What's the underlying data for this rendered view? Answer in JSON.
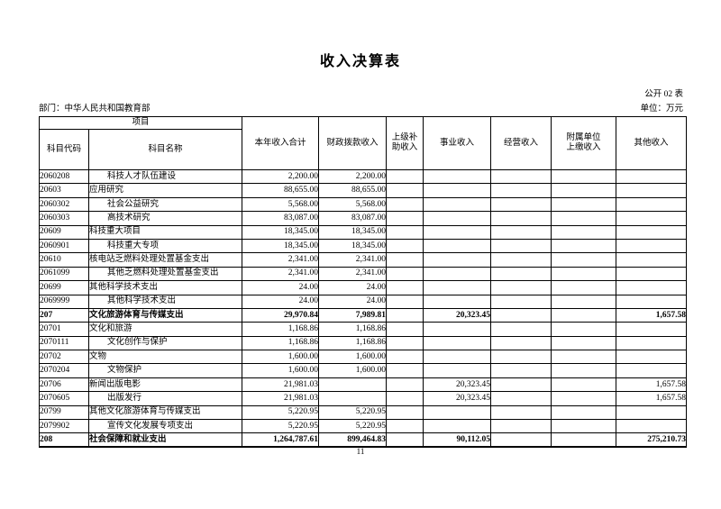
{
  "page": {
    "title": "收入决算表",
    "sheet_label": "公开 02 表",
    "department_label": "部门：中华人民共和国教育部",
    "unit_label": "单位：万元",
    "page_number": "11"
  },
  "table": {
    "header": {
      "project": "项目",
      "code": "科目代码",
      "name": "科目名称",
      "cols": [
        "本年收入合计",
        "财政拨款收入",
        "上级补\n助收入",
        "事业收入",
        "经营收入",
        "附属单位\n上缴收入",
        "其他收入"
      ]
    },
    "rows": [
      {
        "code": "2060208",
        "name": "科技人才队伍建设",
        "indent": 1,
        "bold": false,
        "values": [
          "2,200.00",
          "2,200.00",
          "",
          "",
          "",
          "",
          ""
        ]
      },
      {
        "code": "20603",
        "name": "应用研究",
        "indent": 0,
        "bold": false,
        "values": [
          "88,655.00",
          "88,655.00",
          "",
          "",
          "",
          "",
          ""
        ]
      },
      {
        "code": "2060302",
        "name": "社会公益研究",
        "indent": 1,
        "bold": false,
        "values": [
          "5,568.00",
          "5,568.00",
          "",
          "",
          "",
          "",
          ""
        ]
      },
      {
        "code": "2060303",
        "name": "高技术研究",
        "indent": 1,
        "bold": false,
        "values": [
          "83,087.00",
          "83,087.00",
          "",
          "",
          "",
          "",
          ""
        ]
      },
      {
        "code": "20609",
        "name": "科技重大项目",
        "indent": 0,
        "bold": false,
        "values": [
          "18,345.00",
          "18,345.00",
          "",
          "",
          "",
          "",
          ""
        ]
      },
      {
        "code": "2060901",
        "name": "科技重大专项",
        "indent": 1,
        "bold": false,
        "values": [
          "18,345.00",
          "18,345.00",
          "",
          "",
          "",
          "",
          ""
        ]
      },
      {
        "code": "20610",
        "name": "核电站乏燃料处理处置基金支出",
        "indent": 0,
        "bold": false,
        "values": [
          "2,341.00",
          "2,341.00",
          "",
          "",
          "",
          "",
          ""
        ]
      },
      {
        "code": "2061099",
        "name": "其他乏燃料处理处置基金支出",
        "indent": 1,
        "bold": false,
        "values": [
          "2,341.00",
          "2,341.00",
          "",
          "",
          "",
          "",
          ""
        ]
      },
      {
        "code": "20699",
        "name": "其他科学技术支出",
        "indent": 0,
        "bold": false,
        "values": [
          "24.00",
          "24.00",
          "",
          "",
          "",
          "",
          ""
        ]
      },
      {
        "code": "2069999",
        "name": "其他科学技术支出",
        "indent": 1,
        "bold": false,
        "values": [
          "24.00",
          "24.00",
          "",
          "",
          "",
          "",
          ""
        ]
      },
      {
        "code": "207",
        "name": "文化旅游体育与传媒支出",
        "indent": 0,
        "bold": true,
        "values": [
          "29,970.84",
          "7,989.81",
          "",
          "20,323.45",
          "",
          "",
          "1,657.58"
        ]
      },
      {
        "code": "20701",
        "name": "文化和旅游",
        "indent": 0,
        "bold": false,
        "values": [
          "1,168.86",
          "1,168.86",
          "",
          "",
          "",
          "",
          ""
        ]
      },
      {
        "code": "2070111",
        "name": "文化创作与保护",
        "indent": 1,
        "bold": false,
        "values": [
          "1,168.86",
          "1,168.86",
          "",
          "",
          "",
          "",
          ""
        ]
      },
      {
        "code": "20702",
        "name": "文物",
        "indent": 0,
        "bold": false,
        "values": [
          "1,600.00",
          "1,600.00",
          "",
          "",
          "",
          "",
          ""
        ]
      },
      {
        "code": "2070204",
        "name": "文物保护",
        "indent": 1,
        "bold": false,
        "values": [
          "1,600.00",
          "1,600.00",
          "",
          "",
          "",
          "",
          ""
        ]
      },
      {
        "code": "20706",
        "name": "新闻出版电影",
        "indent": 0,
        "bold": false,
        "values": [
          "21,981.03",
          "",
          "",
          "20,323.45",
          "",
          "",
          "1,657.58"
        ]
      },
      {
        "code": "2070605",
        "name": "出版发行",
        "indent": 1,
        "bold": false,
        "values": [
          "21,981.03",
          "",
          "",
          "20,323.45",
          "",
          "",
          "1,657.58"
        ]
      },
      {
        "code": "20799",
        "name": "其他文化旅游体育与传媒支出",
        "indent": 0,
        "bold": false,
        "values": [
          "5,220.95",
          "5,220.95",
          "",
          "",
          "",
          "",
          ""
        ]
      },
      {
        "code": "2079902",
        "name": "宣传文化发展专项支出",
        "indent": 1,
        "bold": false,
        "values": [
          "5,220.95",
          "5,220.95",
          "",
          "",
          "",
          "",
          ""
        ]
      },
      {
        "code": "208",
        "name": "社会保障和就业支出",
        "indent": 0,
        "bold": true,
        "values": [
          "1,264,787.61",
          "899,464.83",
          "",
          "90,112.05",
          "",
          "",
          "275,210.73"
        ]
      }
    ]
  }
}
